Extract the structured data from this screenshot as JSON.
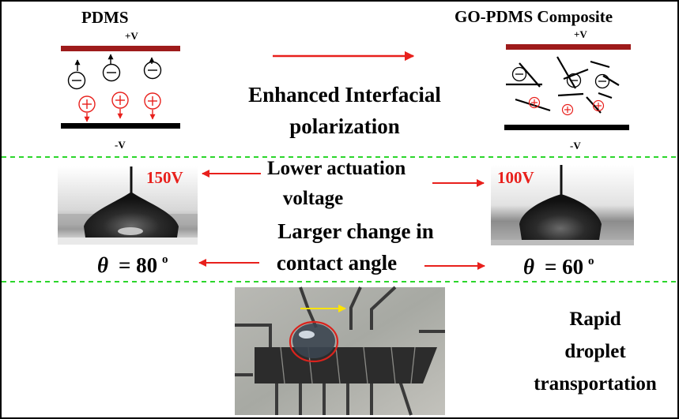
{
  "left_top": {
    "title": "PDMS",
    "plus_label": "+V",
    "minus_label": "-V",
    "neg_charge": "−",
    "pos_charge": "+"
  },
  "right_top": {
    "title": "GO-PDMS Composite",
    "plus_label": "+V",
    "minus_label": "-V"
  },
  "center_top": {
    "line1": "Enhanced Interfacial",
    "line2": "polarization"
  },
  "middle": {
    "left_voltage": "150V",
    "right_voltage": "100V",
    "actuation_line1": "Lower actuation",
    "actuation_line2": "voltage",
    "angle_line1": "Larger change in",
    "angle_line2": "contact angle",
    "left_theta": "θ",
    "left_angle": "= 80",
    "left_degree": "o",
    "right_theta": "θ",
    "right_angle": "= 60",
    "right_degree": "o"
  },
  "bottom": {
    "line1": "Rapid",
    "line2": "droplet",
    "line3": "transportation"
  },
  "colors": {
    "arrow": "#e8201c",
    "top_electrode": "#9e1b1b",
    "bottom_electrode": "#000000",
    "divider": "#2bd62b",
    "voltage_text": "#e8201c",
    "path_arrow": "#ffe400"
  }
}
